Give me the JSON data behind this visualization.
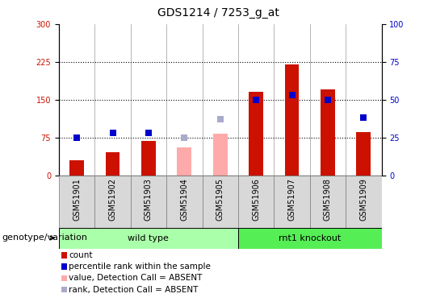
{
  "title": "GDS1214 / 7253_g_at",
  "categories": [
    "GSM51901",
    "GSM51902",
    "GSM51903",
    "GSM51904",
    "GSM51905",
    "GSM51906",
    "GSM51907",
    "GSM51908",
    "GSM51909"
  ],
  "count_values": [
    30,
    45,
    68,
    null,
    null,
    165,
    220,
    170,
    85
  ],
  "count_absent": [
    null,
    null,
    null,
    55,
    82,
    null,
    null,
    null,
    null
  ],
  "rank_values": [
    25,
    28,
    28,
    null,
    null,
    50,
    53,
    50,
    38
  ],
  "rank_absent": [
    null,
    null,
    null,
    25,
    37,
    null,
    null,
    null,
    null
  ],
  "count_color": "#cc1100",
  "rank_color": "#0000cc",
  "count_absent_color": "#ffaaaa",
  "rank_absent_color": "#aaaacc",
  "ylim_left": [
    0,
    300
  ],
  "ylim_right": [
    0,
    100
  ],
  "yticks_left": [
    0,
    75,
    150,
    225,
    300
  ],
  "yticks_right": [
    0,
    25,
    50,
    75,
    100
  ],
  "groups": [
    {
      "label": "wild type",
      "indices": [
        0,
        1,
        2,
        3,
        4
      ],
      "color": "#aaffaa"
    },
    {
      "label": "rnt1 knockout",
      "indices": [
        5,
        6,
        7,
        8
      ],
      "color": "#55ee55"
    }
  ],
  "group_label": "genotype/variation",
  "legend_items": [
    {
      "label": "count",
      "color": "#cc1100"
    },
    {
      "label": "percentile rank within the sample",
      "color": "#0000cc"
    },
    {
      "label": "value, Detection Call = ABSENT",
      "color": "#ffaaaa"
    },
    {
      "label": "rank, Detection Call = ABSENT",
      "color": "#aaaacc"
    }
  ],
  "bar_width": 0.4,
  "marker_size": 6,
  "title_fontsize": 10,
  "tick_fontsize": 7,
  "label_fontsize": 8,
  "legend_fontsize": 7.5,
  "hgrid_vals": [
    75,
    150,
    225
  ],
  "xlabel_bg_color": "#d8d8d8",
  "xlabel_border_color": "#888888"
}
